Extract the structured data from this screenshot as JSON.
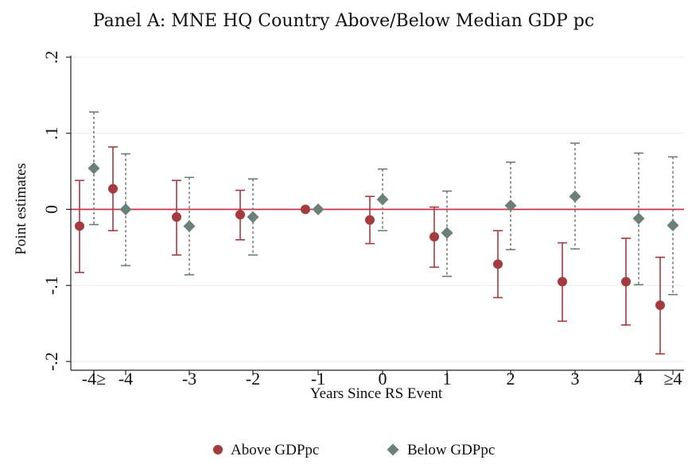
{
  "chart_data": {
    "type": "scatter",
    "title": "Panel A: MNE HQ Country Above/Below Median GDP pc",
    "xlabel": "Years Since RS Event",
    "ylabel": "Point estimates",
    "categories": [
      "-4≥",
      "-4",
      "-3",
      "-2",
      "-1",
      "0",
      "1",
      "2",
      "3",
      "4",
      "≥4"
    ],
    "ylim": [
      -0.2,
      0.2
    ],
    "yticks": [
      0.2,
      0.1,
      0,
      -0.1,
      -0.2
    ],
    "ytick_labels": [
      ".2",
      ".1",
      "0",
      "-.1",
      "-.2"
    ],
    "reference_line": {
      "y": 0,
      "color": "#c8334a"
    },
    "grid": "horizontal",
    "legend_position": "bottom",
    "series": [
      {
        "name": "Above GDPpc",
        "marker": "circle",
        "color": "#a33b3f",
        "errorbar_style": "solid",
        "points": [
          {
            "x": "-4≥",
            "y": -0.022,
            "lo": -0.083,
            "hi": 0.038
          },
          {
            "x": "-4",
            "y": 0.027,
            "lo": -0.028,
            "hi": 0.082
          },
          {
            "x": "-3",
            "y": -0.01,
            "lo": -0.06,
            "hi": 0.038
          },
          {
            "x": "-2",
            "y": -0.007,
            "lo": -0.04,
            "hi": 0.025
          },
          {
            "x": "-1",
            "y": 0.0,
            "lo": null,
            "hi": null
          },
          {
            "x": "0",
            "y": -0.014,
            "lo": -0.045,
            "hi": 0.017
          },
          {
            "x": "1",
            "y": -0.036,
            "lo": -0.076,
            "hi": 0.003
          },
          {
            "x": "2",
            "y": -0.072,
            "lo": -0.116,
            "hi": -0.028
          },
          {
            "x": "3",
            "y": -0.095,
            "lo": -0.147,
            "hi": -0.044
          },
          {
            "x": "4",
            "y": -0.095,
            "lo": -0.152,
            "hi": -0.038
          },
          {
            "x": "≥4",
            "y": -0.126,
            "lo": -0.19,
            "hi": -0.063
          }
        ]
      },
      {
        "name": "Below GDPpc",
        "marker": "diamond",
        "color": "#6b8079",
        "errorbar_style": "dashed",
        "points": [
          {
            "x": "-4≥",
            "y": 0.054,
            "lo": -0.02,
            "hi": 0.128
          },
          {
            "x": "-4",
            "y": 0.0,
            "lo": -0.074,
            "hi": 0.073
          },
          {
            "x": "-3",
            "y": -0.022,
            "lo": -0.086,
            "hi": 0.042
          },
          {
            "x": "-2",
            "y": -0.01,
            "lo": -0.06,
            "hi": 0.04
          },
          {
            "x": "-1",
            "y": 0.0,
            "lo": null,
            "hi": null
          },
          {
            "x": "0",
            "y": 0.013,
            "lo": -0.028,
            "hi": 0.053
          },
          {
            "x": "1",
            "y": -0.031,
            "lo": -0.088,
            "hi": 0.024
          },
          {
            "x": "2",
            "y": 0.005,
            "lo": -0.053,
            "hi": 0.062
          },
          {
            "x": "3",
            "y": 0.017,
            "lo": -0.052,
            "hi": 0.087
          },
          {
            "x": "4",
            "y": -0.012,
            "lo": -0.099,
            "hi": 0.074
          },
          {
            "x": "≥4",
            "y": -0.021,
            "lo": -0.112,
            "hi": 0.069
          }
        ]
      }
    ]
  }
}
